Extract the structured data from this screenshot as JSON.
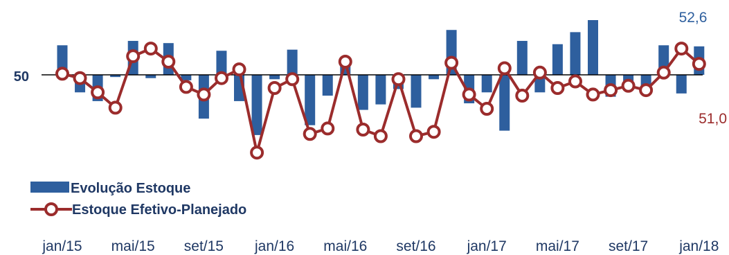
{
  "chart_data": {
    "type": "bar+line",
    "reference_value": 50,
    "reference_label": "50",
    "x": [
      "jan/15",
      "fev/15",
      "mar/15",
      "abr/15",
      "mai/15",
      "jun/15",
      "jul/15",
      "ago/15",
      "set/15",
      "out/15",
      "nov/15",
      "dez/15",
      "jan/16",
      "fev/16",
      "mar/16",
      "abr/16",
      "mai/16",
      "jun/16",
      "jul/16",
      "ago/16",
      "set/16",
      "out/16",
      "nov/16",
      "dez/16",
      "jan/17",
      "fev/17",
      "mar/17",
      "abr/17",
      "mai/17",
      "jun/17",
      "jul/17",
      "ago/17",
      "set/17",
      "out/17",
      "nov/17",
      "dez/17",
      "jan/18"
    ],
    "tick_labels": [
      "jan/15",
      "mai/15",
      "set/15",
      "jan/16",
      "mai/16",
      "set/16",
      "jan/17",
      "mai/17",
      "set/17",
      "jan/18"
    ],
    "series": [
      {
        "name": "Evolução Estoque",
        "type": "bar",
        "color": "#2e5f9e",
        "values": [
          52.7,
          48.4,
          47.6,
          49.8,
          53.1,
          49.7,
          52.9,
          49.5,
          46.0,
          52.2,
          47.6,
          44.5,
          49.6,
          52.3,
          45.4,
          48.1,
          51.2,
          46.8,
          47.3,
          48.7,
          47.0,
          49.6,
          54.1,
          47.4,
          48.4,
          44.9,
          53.1,
          48.4,
          52.8,
          53.9,
          55.0,
          48.0,
          49.2,
          48.7,
          52.7,
          48.3,
          52.6
        ]
      },
      {
        "name": "Estoque Efetivo-Planejado",
        "type": "line",
        "color": "#9b2c2c",
        "values": [
          50.1,
          49.7,
          48.4,
          47.0,
          51.7,
          52.4,
          51.2,
          48.9,
          48.2,
          49.7,
          50.5,
          42.9,
          48.8,
          49.6,
          44.6,
          45.1,
          51.2,
          45.0,
          44.4,
          49.6,
          44.4,
          44.8,
          51.1,
          48.2,
          46.9,
          50.6,
          48.1,
          50.2,
          48.8,
          49.4,
          48.2,
          48.6,
          49.0,
          48.6,
          50.2,
          52.4,
          51.0
        ]
      }
    ],
    "end_labels": {
      "bar": "52,6",
      "line": "51,0"
    },
    "legend": {
      "position": "bottom-left",
      "items": [
        "Evolução Estoque",
        "Estoque Efetivo-Planejado"
      ]
    },
    "grid": false
  }
}
